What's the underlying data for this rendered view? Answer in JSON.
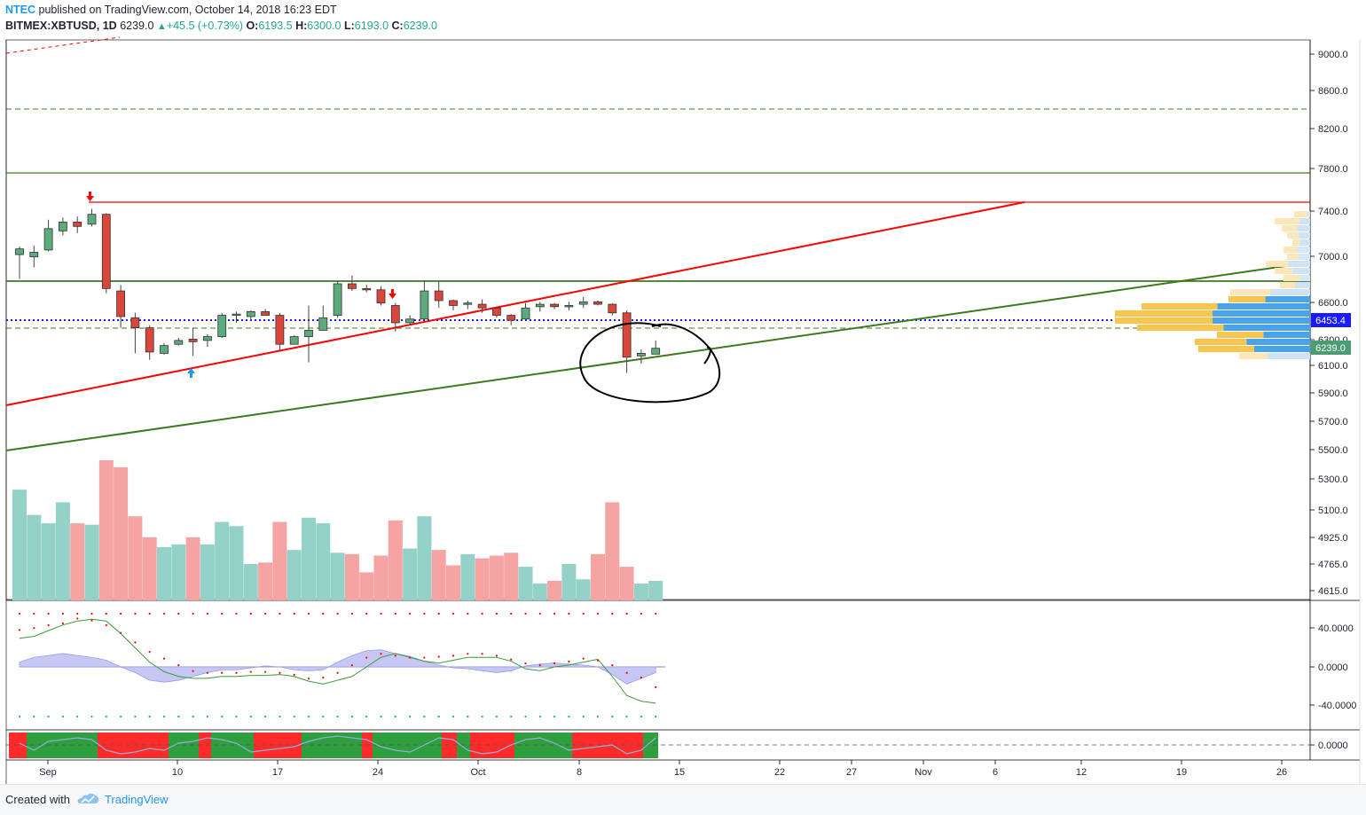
{
  "header": {
    "author": "NTEC",
    "published_text": "published on TradingView.com, October 14, 2018 16:23 EDT",
    "symbol": "BITMEX:XBTUSD, 1D",
    "last": "6239.0",
    "change": "+45.5 (+0.73%)",
    "o_label": "O:",
    "o_value": "6193.5",
    "h_label": "H:",
    "h_value": "6300.0",
    "l_label": "L:",
    "l_value": "6193.0",
    "c_label": "C:",
    "c_value": "6239.0"
  },
  "footer": {
    "created_with": "Created with",
    "brand": "TradingView"
  },
  "colors": {
    "up": "#26a69a",
    "up_fill": "#5cab7d",
    "down": "#ef5350",
    "down_fill": "#d9473b",
    "vol_up": "#93d1c9",
    "vol_down": "#f5a3a3",
    "red_line": "#ff0000",
    "green_line": "#3c7a1f",
    "blue_dots": "#1a1aff",
    "price_tag_blue": "#1a1aff",
    "price_tag_green": "#4c9c73"
  },
  "chart_data": [
    {
      "type": "candlestick",
      "name": "price",
      "y_scale": "log",
      "y_axis_ticks": [
        "9000.0",
        "8600.0",
        "8200.0",
        "7800.0",
        "7400.0",
        "7000.0",
        "6600.0",
        "6300.0",
        "6100.0",
        "5900.0",
        "5700.0",
        "5500.0",
        "5300.0",
        "5100.0",
        "4925.0",
        "4765.0",
        "4615.0"
      ],
      "x_axis_ticks": [
        "Sep",
        "10",
        "17",
        "24",
        "Oct",
        "8",
        "15",
        "22",
        "27",
        "Nov",
        "6",
        "12",
        "19",
        "26"
      ],
      "price_tags": [
        {
          "value": "6453.4",
          "style": "blue"
        },
        {
          "value": "6239.0",
          "style": "green"
        }
      ],
      "candles": [
        {
          "date": "2018-08-31",
          "o": 7010,
          "h": 7080,
          "l": 6800,
          "c": 7060
        },
        {
          "date": "2018-09-01",
          "o": 6990,
          "h": 7090,
          "l": 6900,
          "c": 7030
        },
        {
          "date": "2018-09-02",
          "o": 7050,
          "h": 7320,
          "l": 7040,
          "c": 7240
        },
        {
          "date": "2018-09-03",
          "o": 7220,
          "h": 7340,
          "l": 7180,
          "c": 7300
        },
        {
          "date": "2018-09-04",
          "o": 7300,
          "h": 7350,
          "l": 7200,
          "c": 7260
        },
        {
          "date": "2018-09-05",
          "o": 7280,
          "h": 7420,
          "l": 7260,
          "c": 7370
        },
        {
          "date": "2018-09-06",
          "o": 7370,
          "h": 7380,
          "l": 6680,
          "c": 6720
        },
        {
          "date": "2018-09-07",
          "o": 6700,
          "h": 6750,
          "l": 6400,
          "c": 6490
        },
        {
          "date": "2018-09-08",
          "o": 6480,
          "h": 6520,
          "l": 6200,
          "c": 6400
        },
        {
          "date": "2018-09-09",
          "o": 6400,
          "h": 6420,
          "l": 6150,
          "c": 6210
        },
        {
          "date": "2018-09-10",
          "o": 6200,
          "h": 6280,
          "l": 6190,
          "c": 6260
        },
        {
          "date": "2018-09-11",
          "o": 6270,
          "h": 6320,
          "l": 6260,
          "c": 6300
        },
        {
          "date": "2018-09-12",
          "o": 6310,
          "h": 6400,
          "l": 6180,
          "c": 6290
        },
        {
          "date": "2018-09-13",
          "o": 6300,
          "h": 6350,
          "l": 6250,
          "c": 6330
        },
        {
          "date": "2018-09-14",
          "o": 6330,
          "h": 6520,
          "l": 6320,
          "c": 6500
        },
        {
          "date": "2018-09-15",
          "o": 6500,
          "h": 6530,
          "l": 6440,
          "c": 6510
        },
        {
          "date": "2018-09-16",
          "o": 6490,
          "h": 6540,
          "l": 6460,
          "c": 6530
        },
        {
          "date": "2018-09-17",
          "o": 6530,
          "h": 6550,
          "l": 6500,
          "c": 6500
        },
        {
          "date": "2018-09-18",
          "o": 6500,
          "h": 6520,
          "l": 6220,
          "c": 6270
        },
        {
          "date": "2018-09-19",
          "o": 6270,
          "h": 6340,
          "l": 6270,
          "c": 6330
        },
        {
          "date": "2018-09-20",
          "o": 6330,
          "h": 6580,
          "l": 6130,
          "c": 6380
        },
        {
          "date": "2018-09-21",
          "o": 6380,
          "h": 6580,
          "l": 6380,
          "c": 6480
        },
        {
          "date": "2018-09-22",
          "o": 6500,
          "h": 6780,
          "l": 6480,
          "c": 6760
        },
        {
          "date": "2018-09-23",
          "o": 6760,
          "h": 6830,
          "l": 6700,
          "c": 6720
        },
        {
          "date": "2018-09-24",
          "o": 6720,
          "h": 6750,
          "l": 6690,
          "c": 6710
        },
        {
          "date": "2018-09-25",
          "o": 6710,
          "h": 6740,
          "l": 6580,
          "c": 6600
        },
        {
          "date": "2018-09-26",
          "o": 6580,
          "h": 6600,
          "l": 6370,
          "c": 6440
        },
        {
          "date": "2018-09-27",
          "o": 6440,
          "h": 6500,
          "l": 6430,
          "c": 6470
        },
        {
          "date": "2018-09-28",
          "o": 6470,
          "h": 6790,
          "l": 6460,
          "c": 6700
        },
        {
          "date": "2018-09-29",
          "o": 6700,
          "h": 6780,
          "l": 6560,
          "c": 6620
        },
        {
          "date": "2018-09-30",
          "o": 6620,
          "h": 6630,
          "l": 6540,
          "c": 6580
        },
        {
          "date": "2018-10-01",
          "o": 6590,
          "h": 6620,
          "l": 6550,
          "c": 6600
        },
        {
          "date": "2018-10-02",
          "o": 6590,
          "h": 6630,
          "l": 6520,
          "c": 6560
        },
        {
          "date": "2018-10-03",
          "o": 6560,
          "h": 6570,
          "l": 6480,
          "c": 6500
        },
        {
          "date": "2018-10-04",
          "o": 6500,
          "h": 6510,
          "l": 6420,
          "c": 6460
        },
        {
          "date": "2018-10-05",
          "o": 6470,
          "h": 6600,
          "l": 6470,
          "c": 6560
        },
        {
          "date": "2018-10-06",
          "o": 6570,
          "h": 6610,
          "l": 6530,
          "c": 6590
        },
        {
          "date": "2018-10-07",
          "o": 6590,
          "h": 6600,
          "l": 6550,
          "c": 6570
        },
        {
          "date": "2018-10-08",
          "o": 6570,
          "h": 6610,
          "l": 6540,
          "c": 6580
        },
        {
          "date": "2018-10-09",
          "o": 6590,
          "h": 6650,
          "l": 6560,
          "c": 6610
        },
        {
          "date": "2018-10-10",
          "o": 6610,
          "h": 6620,
          "l": 6580,
          "c": 6590
        },
        {
          "date": "2018-10-11",
          "o": 6590,
          "h": 6600,
          "l": 6500,
          "c": 6520
        },
        {
          "date": "2018-10-12",
          "o": 6520,
          "h": 6540,
          "l": 6050,
          "c": 6170
        },
        {
          "date": "2018-10-13",
          "o": 6180,
          "h": 6230,
          "l": 6120,
          "c": 6200
        },
        {
          "date": "2018-10-14",
          "o": 6193.5,
          "h": 6300,
          "l": 6193,
          "c": 6239
        }
      ]
    },
    {
      "type": "bar",
      "name": "volume",
      "note_colors": "up/down matches candle",
      "relative_values": [
        0.79,
        0.61,
        0.55,
        0.7,
        0.55,
        0.54,
        1.0,
        0.95,
        0.6,
        0.45,
        0.38,
        0.4,
        0.45,
        0.4,
        0.56,
        0.53,
        0.26,
        0.27,
        0.56,
        0.36,
        0.59,
        0.55,
        0.34,
        0.33,
        0.2,
        0.32,
        0.57,
        0.37,
        0.6,
        0.36,
        0.25,
        0.33,
        0.3,
        0.32,
        0.34,
        0.24,
        0.12,
        0.14,
        0.26,
        0.15,
        0.33,
        0.7,
        0.24,
        0.12,
        0.14
      ]
    },
    {
      "type": "line",
      "name": "oscillator",
      "y_axis_ticks": [
        "40.0000",
        "0.0000",
        "-40.0000"
      ],
      "ylim": [
        -60,
        60
      ]
    },
    {
      "type": "area",
      "name": "sub-oscillator",
      "y_axis_ticks": [
        "0.0000"
      ]
    }
  ]
}
